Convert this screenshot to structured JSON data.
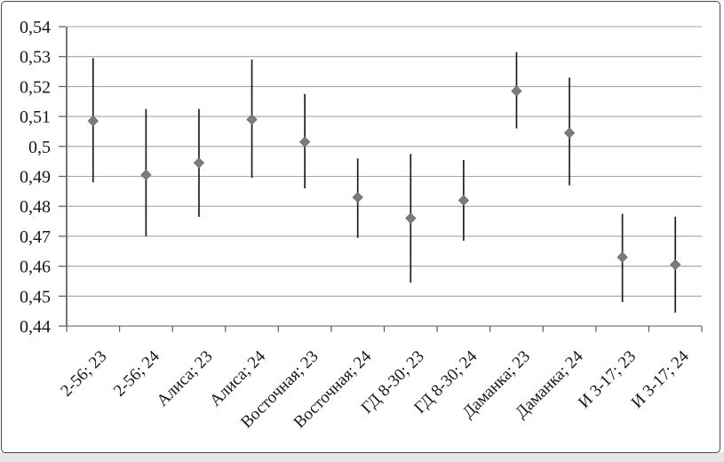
{
  "figure": {
    "background": "#ffffff",
    "frame_color": "#474747",
    "edge_strip_color": "#e7e7e7"
  },
  "chart_data": {
    "type": "scatter",
    "subtype": "mean-with-error-bars",
    "categories": [
      "2-56; 23",
      "2-56; 24",
      "Алиса; 23",
      "Алиса; 24",
      "Восточная; 23",
      "Восточная; 24",
      "ГД 8-30; 23",
      "ГД 8-30; 24",
      "Даманка; 23",
      "Даманка; 24",
      "И 3-17; 23",
      "И 3-17; 24"
    ],
    "series": [
      {
        "name": "mean",
        "marker": "diamond",
        "values": [
          0.5085,
          0.4905,
          0.4945,
          0.509,
          0.5015,
          0.483,
          0.476,
          0.482,
          0.5185,
          0.5045,
          0.463,
          0.4605
        ],
        "error_low": [
          0.488,
          0.47,
          0.4765,
          0.4895,
          0.486,
          0.4695,
          0.4545,
          0.4685,
          0.506,
          0.487,
          0.448,
          0.4445
        ],
        "error_high": [
          0.5295,
          0.5125,
          0.5125,
          0.529,
          0.5175,
          0.496,
          0.4975,
          0.4955,
          0.5315,
          0.523,
          0.4775,
          0.4765
        ]
      }
    ],
    "ylim": [
      0.44,
      0.54
    ],
    "ytick_step": 0.01,
    "ytick_labels": [
      "0,54",
      "0,53",
      "0,52",
      "0,51",
      "0,5",
      "0,49",
      "0,48",
      "0,47",
      "0,46",
      "0,45",
      "0,44"
    ],
    "xtick_label_rotation_deg": -45,
    "decimal_separator": ",",
    "grid": true,
    "legend_position": "none",
    "colors": {
      "marker": "#7c7c7c",
      "marker_edge": "#696969",
      "error_bar": "#1f1f1f",
      "gridline": "#a4a4a4",
      "x_axis": "#8f8f8f",
      "y_axis": "#545454",
      "tick": "#5a5a5a",
      "label": "#161616"
    }
  }
}
